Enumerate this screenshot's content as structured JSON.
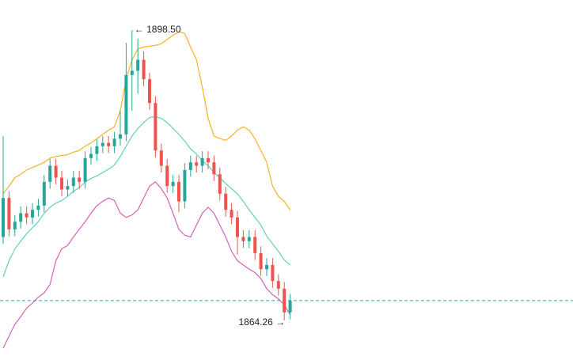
{
  "chart_data": {
    "type": "candlestick",
    "ylim": [
      1859.59,
      1902.05
    ],
    "up_color": "#26a69a",
    "down_color": "#ef5350",
    "last_line_color": "#26a69a",
    "annotations": [
      "← 1898.50",
      "1864.26 →"
    ],
    "open": [
      1874.1,
      1878.7,
      1875.0,
      1875.9,
      1876.9,
      1876.4,
      1877.3,
      1877.8,
      1880.6,
      1882.5,
      1881.1,
      1879.7,
      1880.1,
      1881.1,
      1880.6,
      1883.4,
      1883.9,
      1884.8,
      1885.2,
      1884.8,
      1885.7,
      1886.2,
      1893.2,
      1893.7,
      1895.0,
      1892.7,
      1889.9,
      1884.3,
      1882.5,
      1880.1,
      1880.6,
      1878.3,
      1882.0,
      1882.9,
      1882.5,
      1883.4,
      1882.9,
      1881.5,
      1879.2,
      1877.3,
      1876.4,
      1874.1,
      1873.6,
      1874.1,
      1872.2,
      1870.3,
      1870.8,
      1868.9,
      1868.0,
      1865.2
    ],
    "high": [
      1886.0,
      1879.5,
      1876.7,
      1877.7,
      1877.7,
      1878.1,
      1878.6,
      1881.4,
      1883.3,
      1883.3,
      1881.9,
      1880.9,
      1881.9,
      1881.9,
      1884.2,
      1884.7,
      1885.6,
      1886.0,
      1886.0,
      1886.5,
      1889.0,
      1897.0,
      1898.5,
      1897.5,
      1896.0,
      1893.5,
      1890.7,
      1885.1,
      1883.3,
      1881.4,
      1881.4,
      1882.8,
      1883.7,
      1883.7,
      1884.2,
      1884.2,
      1883.7,
      1882.3,
      1880.0,
      1878.1,
      1877.2,
      1874.9,
      1874.9,
      1874.9,
      1873.0,
      1871.6,
      1871.6,
      1869.7,
      1868.8,
      1867.4
    ],
    "low": [
      1873.3,
      1874.2,
      1874.2,
      1875.1,
      1875.6,
      1875.6,
      1876.5,
      1877.0,
      1879.8,
      1880.3,
      1878.9,
      1878.9,
      1879.3,
      1879.8,
      1879.8,
      1882.6,
      1883.1,
      1884.0,
      1884.0,
      1884.0,
      1884.9,
      1885.4,
      1889.0,
      1891.0,
      1891.9,
      1889.1,
      1883.5,
      1881.7,
      1879.3,
      1879.3,
      1877.0,
      1877.5,
      1881.2,
      1881.7,
      1881.7,
      1882.1,
      1880.7,
      1878.4,
      1876.5,
      1875.6,
      1872.0,
      1872.8,
      1872.8,
      1871.4,
      1869.5,
      1869.5,
      1868.1,
      1867.2,
      1864.26,
      1864.4
    ],
    "close": [
      1878.7,
      1875.0,
      1875.9,
      1876.9,
      1876.4,
      1877.3,
      1877.8,
      1880.6,
      1882.5,
      1881.1,
      1879.7,
      1880.1,
      1881.1,
      1880.6,
      1883.4,
      1883.9,
      1884.8,
      1885.2,
      1884.8,
      1885.7,
      1886.2,
      1893.2,
      1893.7,
      1895.0,
      1892.7,
      1889.9,
      1884.3,
      1882.5,
      1880.1,
      1880.6,
      1878.3,
      1882.0,
      1882.9,
      1882.5,
      1883.4,
      1882.9,
      1881.5,
      1879.2,
      1877.3,
      1876.4,
      1874.1,
      1873.6,
      1874.1,
      1872.2,
      1870.3,
      1870.8,
      1868.9,
      1868.0,
      1865.2,
      1866.6
    ],
    "series": [
      {
        "color": "#f5b324",
        "values": [
          1879.2,
          1880.1,
          1881.1,
          1881.5,
          1882.0,
          1882.3,
          1882.6,
          1882.9,
          1883.4,
          1883.6,
          1883.7,
          1883.8,
          1884.1,
          1884.3,
          1884.8,
          1885.2,
          1885.7,
          1886.2,
          1886.7,
          1887.1,
          1889.0,
          1892.7,
          1895.0,
          1896.3,
          1896.5,
          1896.6,
          1896.7,
          1896.9,
          1897.4,
          1897.9,
          1898.3,
          1898.1,
          1896.5,
          1895.0,
          1891.8,
          1888.1,
          1886.0,
          1885.7,
          1885.5,
          1886.0,
          1886.7,
          1887.1,
          1886.7,
          1885.7,
          1884.3,
          1882.9,
          1880.1,
          1878.9,
          1878.3,
          1877.3
        ]
      },
      {
        "color": "#5fd3b5",
        "values": [
          1869.4,
          1871.3,
          1872.7,
          1873.6,
          1874.5,
          1875.2,
          1875.9,
          1876.9,
          1877.6,
          1878.1,
          1878.4,
          1878.9,
          1879.5,
          1879.9,
          1880.6,
          1881.0,
          1881.3,
          1881.7,
          1882.1,
          1882.6,
          1883.6,
          1884.8,
          1886.0,
          1886.9,
          1887.6,
          1888.2,
          1888.3,
          1888.1,
          1887.6,
          1886.9,
          1886.2,
          1885.4,
          1884.5,
          1883.9,
          1883.1,
          1882.5,
          1881.7,
          1881.1,
          1880.4,
          1879.8,
          1879.2,
          1878.3,
          1877.3,
          1876.4,
          1875.5,
          1874.2,
          1873.3,
          1872.4,
          1871.4,
          1870.8
        ]
      },
      {
        "color": "#d660b8",
        "values": [
          1861.0,
          1862.4,
          1863.8,
          1864.7,
          1865.7,
          1866.3,
          1867.0,
          1867.5,
          1868.5,
          1871.3,
          1872.7,
          1873.1,
          1874.1,
          1875.0,
          1875.9,
          1876.9,
          1877.8,
          1878.3,
          1878.7,
          1878.4,
          1876.9,
          1876.4,
          1876.7,
          1877.3,
          1878.7,
          1880.1,
          1880.6,
          1879.8,
          1878.7,
          1876.9,
          1875.0,
          1874.3,
          1874.1,
          1875.5,
          1876.9,
          1877.6,
          1876.9,
          1875.5,
          1874.1,
          1872.4,
          1871.3,
          1870.8,
          1870.3,
          1869.9,
          1869.2,
          1868.0,
          1867.3,
          1866.8,
          1866.1,
          1864.9
        ]
      }
    ]
  }
}
